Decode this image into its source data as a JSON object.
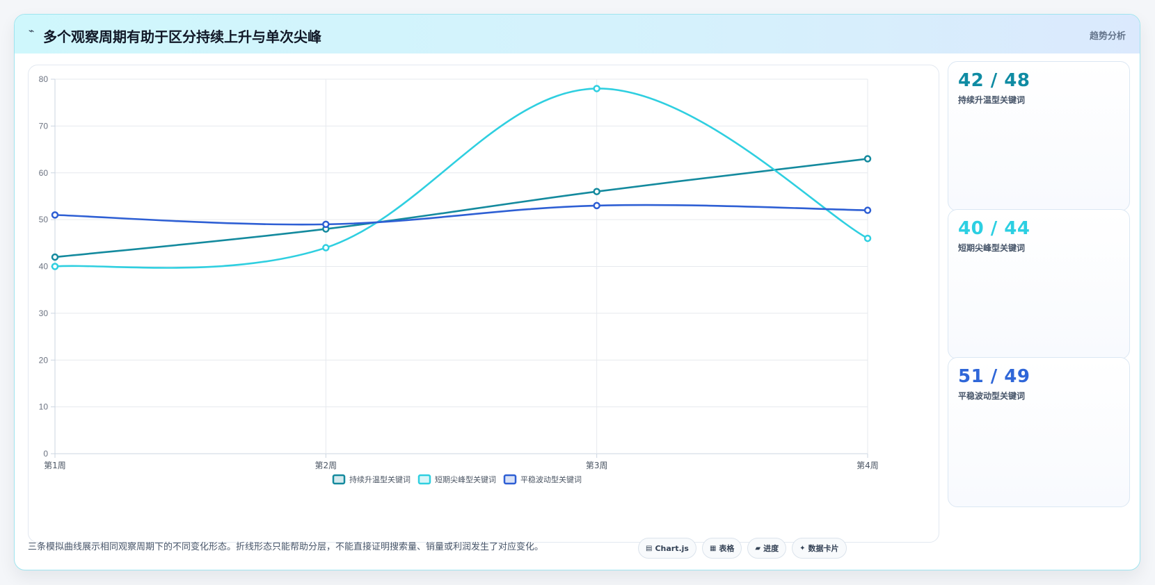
{
  "header": {
    "icon": "sparkline-icon",
    "icon_glyph": "⌁",
    "title": "多个观察周期有助于区分持续上升与单次尖峰",
    "tag": "趋势分析"
  },
  "chart_data": {
    "type": "line",
    "categories": [
      "第1周",
      "第2周",
      "第3周",
      "第4周"
    ],
    "series": [
      {
        "name": "持续升温型关键词",
        "values": [
          42,
          48,
          56,
          63
        ],
        "color": "#148a9e"
      },
      {
        "name": "短期尖峰型关键词",
        "values": [
          40,
          44,
          78,
          46
        ],
        "color": "#2fcfe0"
      },
      {
        "name": "平稳波动型关键词",
        "values": [
          51,
          49,
          53,
          52
        ],
        "color": "#2e5fd4"
      }
    ],
    "ylim": [
      0,
      80
    ],
    "yticks": [
      "0",
      "10",
      "20",
      "30",
      "40",
      "50",
      "60",
      "70",
      "80"
    ],
    "grid": true,
    "legend_position": "bottom",
    "smooth": true
  },
  "side_cards": [
    {
      "value": "42 / 48",
      "label": "持续升温型关键词",
      "color": "#0f8ba3"
    },
    {
      "value": "40 / 44",
      "label": "短期尖峰型关键词",
      "color": "#2ccfe2"
    },
    {
      "value": "51 / 49",
      "label": "平稳波动型关键词",
      "color": "#2f66d8"
    }
  ],
  "footer": {
    "note": "三条模拟曲线展示相同观察周期下的不同变化形态。折线形态只能帮助分层，不能直接证明搜索量、销量或利润发生了对应变化。",
    "chips": [
      {
        "icon": "chart-icon",
        "glyph": "▤",
        "label": "Chart.js"
      },
      {
        "icon": "table-icon",
        "glyph": "▦",
        "label": "表格"
      },
      {
        "icon": "progress-icon",
        "glyph": "▰",
        "label": "进度"
      },
      {
        "icon": "data-card-icon",
        "glyph": "✦",
        "label": "数据卡片"
      }
    ]
  }
}
